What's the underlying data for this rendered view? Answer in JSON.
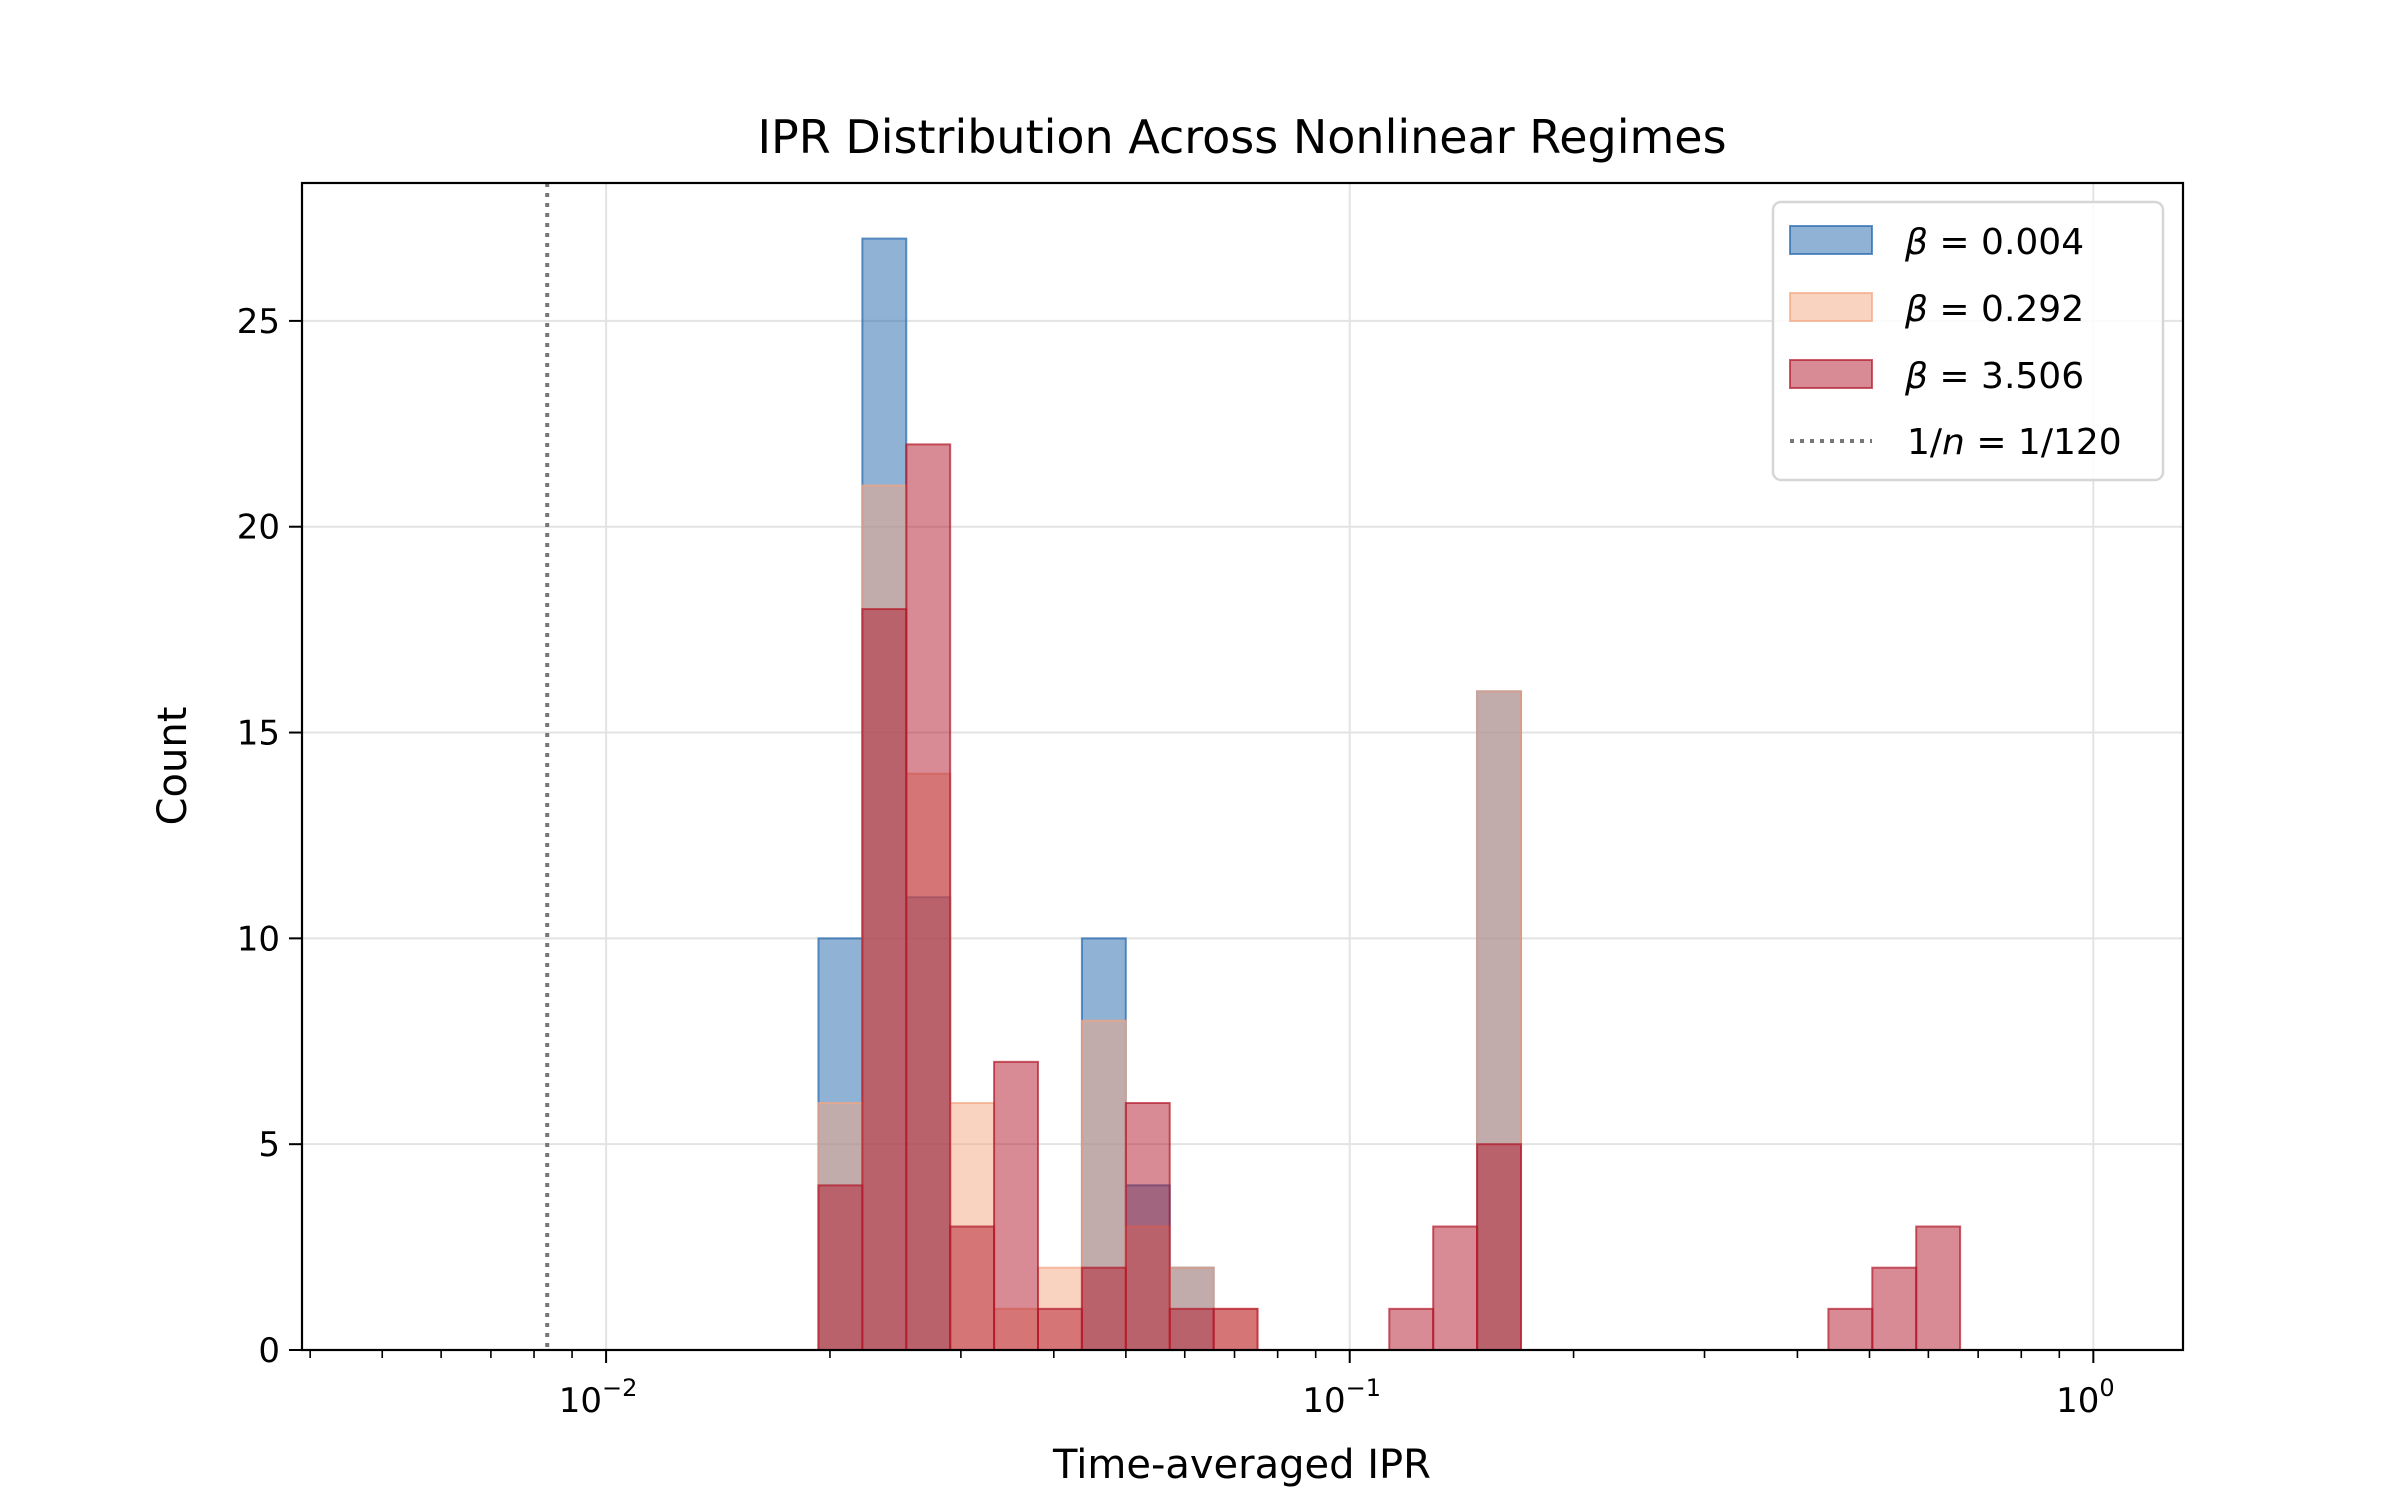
{
  "chart_data": {
    "type": "histogram",
    "title": "IPR Distribution Across Nonlinear Regimes",
    "xlabel": "Time-averaged IPR",
    "ylabel": "Count",
    "xscale": "log",
    "xlim": [
      0.0039,
      1.32
    ],
    "ylim": [
      0,
      28.35
    ],
    "grid": true,
    "legend_position": "top-right",
    "x_tick_labels": [
      {
        "value": 0.01,
        "base": "10",
        "exp": "−2"
      },
      {
        "value": 0.1,
        "base": "10",
        "exp": "−1"
      },
      {
        "value": 1,
        "base": "10",
        "exp": "0"
      }
    ],
    "y_ticks": [
      0,
      5,
      10,
      15,
      20,
      25
    ],
    "bin_range": [
      0.0193,
      0.662
    ],
    "bin_count": 26,
    "series": [
      {
        "name": "β = 0.004",
        "beta_label": "β",
        "value_label": "= 0.004",
        "color": "#2166ac",
        "alpha": 0.5,
        "counts": [
          10,
          27,
          11,
          0,
          0,
          0,
          10,
          4,
          2,
          0,
          0,
          0,
          0,
          0,
          0,
          16,
          0,
          0,
          0,
          0,
          0,
          0,
          0,
          0,
          0,
          0
        ]
      },
      {
        "name": "β = 0.292",
        "beta_label": "β",
        "value_label": "= 0.292",
        "color": "#f4a582",
        "alpha": 0.5,
        "counts": [
          6,
          21,
          14,
          6,
          1,
          2,
          8,
          3,
          2,
          1,
          0,
          0,
          0,
          0,
          0,
          16,
          0,
          0,
          0,
          0,
          0,
          0,
          0,
          0,
          0,
          0
        ]
      },
      {
        "name": "β = 3.506",
        "beta_label": "β",
        "value_label": "= 3.506",
        "color": "#b2182b",
        "alpha": 0.5,
        "counts": [
          4,
          18,
          22,
          3,
          7,
          1,
          2,
          6,
          1,
          1,
          0,
          0,
          0,
          1,
          3,
          5,
          0,
          0,
          0,
          0,
          0,
          0,
          0,
          1,
          2,
          3
        ]
      }
    ],
    "reference_line": {
      "x": 0.008333,
      "label_prefix": "1/",
      "label_var": "n",
      "label_suffix": " = 1/120",
      "color": "#777777",
      "style": "dotted"
    }
  }
}
